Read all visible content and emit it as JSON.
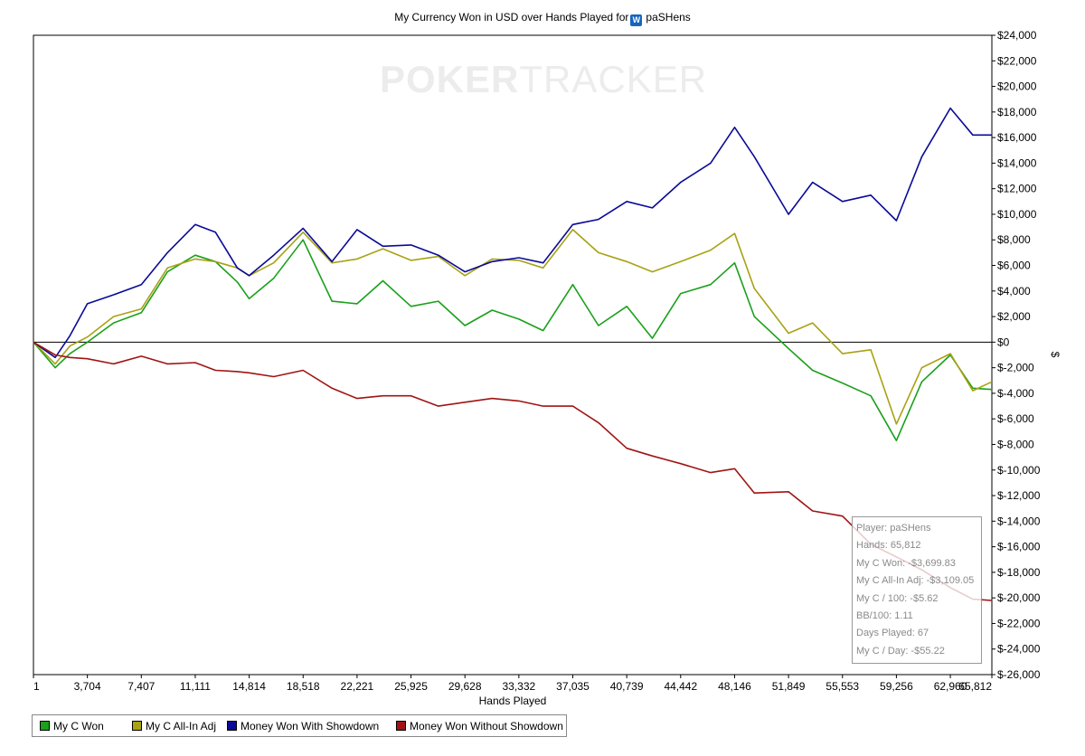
{
  "window": {
    "title_prefix": "My Currency Won in USD over Hands Played for",
    "player_name": "paSHens",
    "watermark_bold": "POKER",
    "watermark_thin": "TRACKER"
  },
  "colors": {
    "my_c_won": "#1aa01a",
    "my_c_allin_adj": "#a8a214",
    "money_with_showdown": "#0a0a96",
    "money_without_showdown": "#a01414",
    "zero_line": "#000000"
  },
  "legend": [
    {
      "label": "My C Won",
      "color": "#1aa01a"
    },
    {
      "label": "My C All-In Adj",
      "color": "#a8a214"
    },
    {
      "label": "Money Won With Showdown",
      "color": "#0a0a96"
    },
    {
      "label": "Money Won Without Showdown",
      "color": "#a01414"
    }
  ],
  "tooltip": {
    "lines": [
      "Player: paSHens",
      "Hands: 65,812",
      "My C Won: -$3,699.83",
      "My C All-In Adj: -$3,109.05",
      "My C / 100: -$5.62",
      "BB/100: 1.11",
      "Days Played: 67",
      "My C / Day: -$55.22"
    ]
  },
  "chart_data": {
    "type": "line",
    "title": "My Currency Won in USD over Hands Played for paSHens",
    "xlabel": "Hands Played",
    "ylabel": "$",
    "xlim": [
      1,
      65812
    ],
    "ylim": [
      -26000,
      24000
    ],
    "x_ticks": [
      1,
      3704,
      7407,
      11111,
      14814,
      18518,
      22221,
      25925,
      29628,
      33332,
      37035,
      40739,
      44442,
      48146,
      51849,
      55553,
      59256,
      62960,
      65812
    ],
    "x_tick_labels": [
      "1",
      "3,704",
      "7,407",
      "11,111",
      "14,814",
      "18,518",
      "22,221",
      "25,925",
      "29,628",
      "33,332",
      "37,035",
      "40,739",
      "44,442",
      "48,146",
      "51,849",
      "55,553",
      "59,256",
      "62,960",
      "65,812"
    ],
    "y_ticks": [
      24000,
      22000,
      20000,
      18000,
      16000,
      14000,
      12000,
      10000,
      8000,
      6000,
      4000,
      2000,
      0,
      -2000,
      -4000,
      -6000,
      -8000,
      -10000,
      -12000,
      -14000,
      -16000,
      -18000,
      -20000,
      -22000,
      -24000,
      -26000
    ],
    "y_tick_labels": [
      "$24,000",
      "$22,000",
      "$20,000",
      "$18,000",
      "$16,000",
      "$14,000",
      "$12,000",
      "$10,000",
      "$8,000",
      "$6,000",
      "$4,000",
      "$2,000",
      "$0",
      "$-2,000",
      "$-4,000",
      "$-6,000",
      "$-8,000",
      "$-10,000",
      "$-12,000",
      "$-14,000",
      "$-16,000",
      "$-18,000",
      "$-20,000",
      "$-22,000",
      "$-24,000",
      "$-26,000"
    ],
    "grid": false,
    "legend_position": "bottom-left",
    "x": [
      1,
      1500,
      2500,
      3704,
      5500,
      7407,
      9200,
      11111,
      12500,
      14000,
      14814,
      16500,
      18518,
      20500,
      22221,
      24000,
      25925,
      27800,
      29628,
      31500,
      33332,
      35000,
      37035,
      38800,
      40739,
      42500,
      44442,
      46500,
      48146,
      49500,
      51849,
      53500,
      55553,
      57500,
      59256,
      61000,
      62960,
      64500,
      65812
    ],
    "series": [
      {
        "name": "My C Won",
        "color": "#1aa01a",
        "values": [
          0,
          -2000,
          -900,
          0,
          1500,
          2300,
          5500,
          6800,
          6300,
          4700,
          3400,
          5000,
          8000,
          3200,
          3000,
          4800,
          2800,
          3200,
          1300,
          2500,
          1800,
          900,
          4500,
          1300,
          2800,
          300,
          3800,
          4500,
          6200,
          2000,
          -500,
          -2200,
          -3200,
          -4200,
          -7700,
          -3100,
          -1000,
          -3600,
          -3700
        ]
      },
      {
        "name": "My C All-In Adj",
        "color": "#a8a214",
        "values": [
          0,
          -1700,
          -300,
          400,
          2000,
          2600,
          5800,
          6500,
          6300,
          5800,
          5200,
          6200,
          8600,
          6200,
          6500,
          7300,
          6400,
          6700,
          5200,
          6500,
          6400,
          5800,
          8800,
          7000,
          6300,
          5500,
          6300,
          7200,
          8500,
          4200,
          700,
          1500,
          -900,
          -600,
          -6400,
          -2000,
          -900,
          -3800,
          -3100
        ]
      },
      {
        "name": "Money Won With Showdown",
        "color": "#0a0a96",
        "values": [
          0,
          -1200,
          500,
          3000,
          3700,
          4500,
          7000,
          9200,
          8600,
          5800,
          5200,
          6800,
          8900,
          6300,
          8800,
          7500,
          7600,
          6800,
          5500,
          6300,
          6600,
          6200,
          9200,
          9600,
          11000,
          10500,
          12500,
          14000,
          16800,
          14500,
          10000,
          12500,
          11000,
          11500,
          9500,
          14500,
          18300,
          16200,
          16200
        ]
      },
      {
        "name": "Money Won Without Showdown",
        "color": "#a01414",
        "values": [
          0,
          -1000,
          -1200,
          -1300,
          -1700,
          -1100,
          -1700,
          -1600,
          -2200,
          -2300,
          -2400,
          -2700,
          -2200,
          -3600,
          -4400,
          -4200,
          -4200,
          -5000,
          -4700,
          -4400,
          -4600,
          -5000,
          -5000,
          -6300,
          -8300,
          -8900,
          -9500,
          -10200,
          -9900,
          -11800,
          -11700,
          -13200,
          -13600,
          -15800,
          -16800,
          -17800,
          -19200,
          -20100,
          -20200
        ]
      }
    ]
  }
}
